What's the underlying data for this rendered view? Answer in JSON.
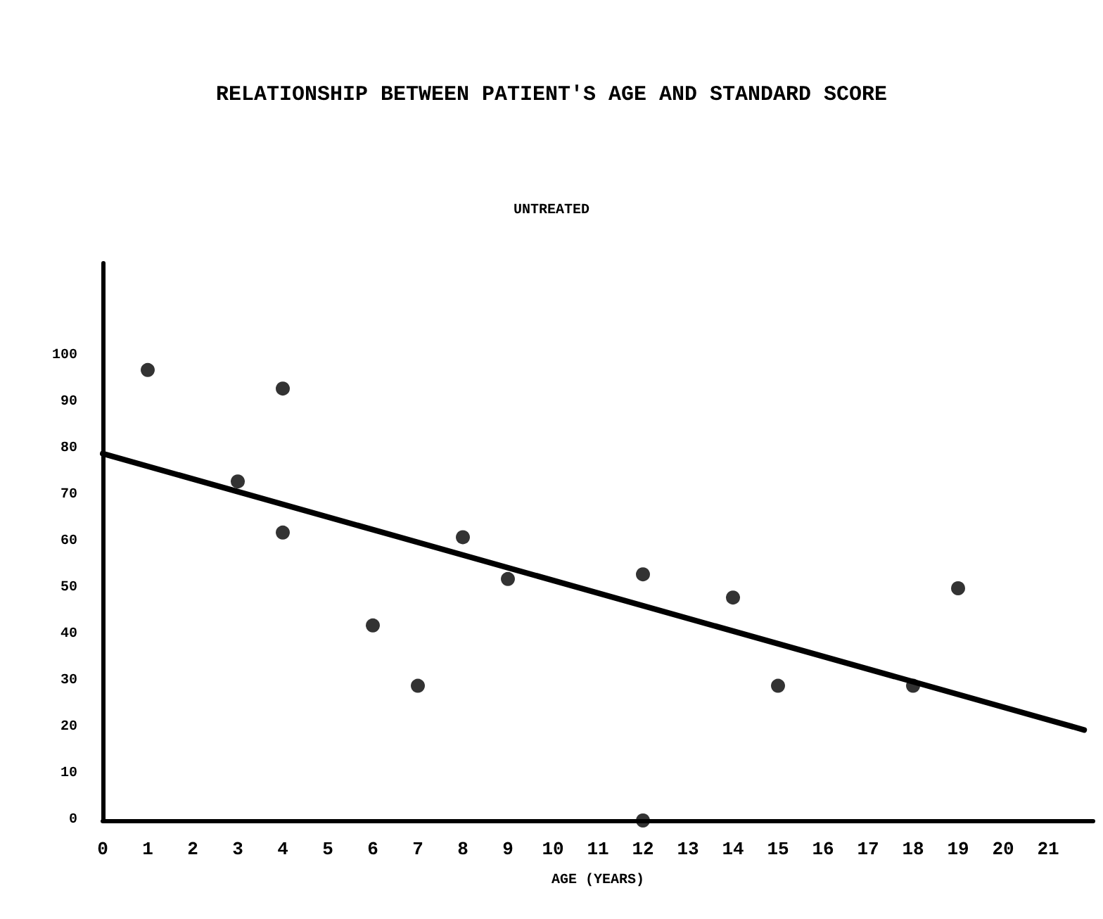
{
  "chart_data": {
    "type": "scatter",
    "title": "RELATIONSHIP BETWEEN PATIENT'S AGE AND STANDARD SCORE",
    "subtitle": "UNTREATED",
    "xlabel": "AGE (YEARS)",
    "series": [
      {
        "color": "#000000",
        "x": [
          1,
          3,
          4,
          4,
          6,
          7,
          8,
          9,
          12,
          12,
          14,
          15,
          18,
          19
        ],
        "values": [
          97,
          73,
          93,
          62,
          42,
          29,
          61,
          52,
          53,
          0,
          48,
          29,
          29,
          50
        ]
      },
      {
        "type": "line",
        "marker": "none",
        "color": "#000000",
        "x": [
          0,
          21.8
        ],
        "values": [
          79,
          19.5
        ]
      }
    ],
    "xlim": [
      0,
      22
    ],
    "xticks": [
      0,
      1,
      2,
      3,
      4,
      5,
      6,
      7,
      8,
      9,
      10,
      11,
      12,
      13,
      14,
      15,
      16,
      17,
      18,
      19,
      20,
      21
    ],
    "ylim": [
      0,
      120
    ],
    "yticks": [
      0,
      10,
      20,
      30,
      40,
      50,
      60,
      70,
      80,
      90,
      100
    ],
    "grid": false,
    "marker": "circle",
    "line_style": "solid"
  }
}
